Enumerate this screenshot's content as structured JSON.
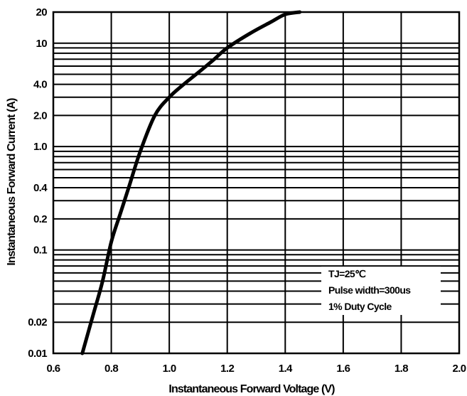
{
  "chart_data": {
    "type": "line",
    "title": "",
    "xlabel": "Instantaneous Forward Voltage (V)",
    "ylabel": "Instantaneous Forward Current (A)",
    "xscale": "linear",
    "yscale": "log",
    "xlim": [
      0.6,
      2.0
    ],
    "ylim": [
      0.01,
      20
    ],
    "grid": true,
    "x_ticks": [
      0.6,
      0.8,
      1.0,
      1.2,
      1.4,
      1.6,
      1.8,
      2.0
    ],
    "x_tick_labels": [
      "0.6",
      "0.8",
      "1.0",
      "1.2",
      "1.4",
      "1.6",
      "1.8",
      "2.0"
    ],
    "y_ticks": [
      0.01,
      0.02,
      0.1,
      0.2,
      0.4,
      1.0,
      2.0,
      4.0,
      10,
      20
    ],
    "y_tick_labels": [
      "0.01",
      "0.02",
      "0.1",
      "0.2",
      "0.4",
      "1.0",
      "2.0",
      "4.0",
      "10",
      "20"
    ],
    "y_gridlines": [
      0.01,
      0.02,
      0.03,
      0.04,
      0.05,
      0.06,
      0.07,
      0.08,
      0.09,
      0.1,
      0.2,
      0.3,
      0.4,
      0.5,
      0.6,
      0.7,
      0.8,
      0.9,
      1,
      2,
      3,
      4,
      5,
      6,
      7,
      8,
      9,
      10,
      20
    ],
    "series": [
      {
        "color": "#000000",
        "x": [
          0.7,
          0.74,
          0.77,
          0.8,
          0.83,
          0.86,
          0.9,
          0.95,
          1.0,
          1.05,
          1.1,
          1.15,
          1.2,
          1.28,
          1.35,
          1.4,
          1.45
        ],
        "y": [
          0.01,
          0.025,
          0.05,
          0.12,
          0.22,
          0.4,
          0.9,
          2.0,
          3.0,
          4.0,
          5.2,
          6.8,
          9.0,
          12.5,
          16.0,
          19.0,
          20.0
        ]
      }
    ],
    "annotations": [
      "TJ=25℃",
      "Pulse width=300us",
      "1% Duty Cycle"
    ],
    "annotation_placement": "bottom-right"
  }
}
